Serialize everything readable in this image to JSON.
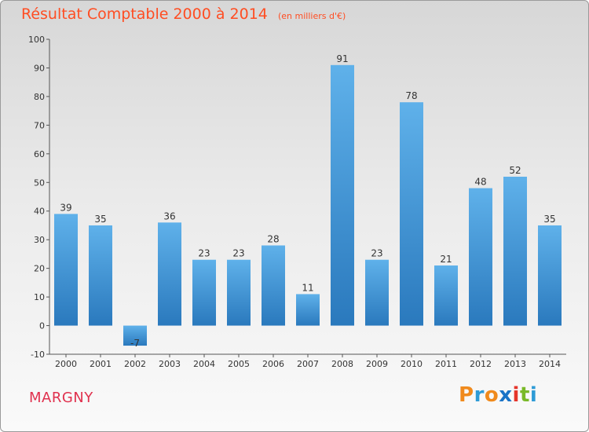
{
  "title": {
    "main": "Résultat Comptable 2000 à 2014",
    "sub": "(en milliers d'€)"
  },
  "commune": "MARGNY",
  "brand": {
    "letters": [
      "P",
      "r",
      "o",
      "x",
      "i",
      "t",
      "i"
    ],
    "colors": [
      "#f08a1c",
      "#2e9bd6",
      "#f08a1c",
      "#1a73c7",
      "#e5352b",
      "#79b928",
      "#2e9bd6"
    ]
  },
  "colors": {
    "bar_light": "#5fb1ea",
    "bar_dark": "#2a79bd",
    "title": "#ff4d22",
    "commune": "#e0314e"
  },
  "chart_data": {
    "type": "bar",
    "title": "Résultat Comptable 2000 à 2014",
    "subtitle": "(en milliers d'€)",
    "xlabel": "",
    "ylabel": "",
    "categories": [
      "2000",
      "2001",
      "2002",
      "2003",
      "2004",
      "2005",
      "2006",
      "2007",
      "2008",
      "2009",
      "2010",
      "2011",
      "2012",
      "2013",
      "2014"
    ],
    "values": [
      39,
      35,
      -7,
      36,
      23,
      23,
      28,
      11,
      91,
      23,
      78,
      21,
      48,
      52,
      35
    ],
    "ylim": [
      -10,
      100
    ],
    "yticks": [
      -10,
      0,
      10,
      20,
      30,
      40,
      50,
      60,
      70,
      80,
      90,
      100
    ],
    "grid": false,
    "legend": "none"
  }
}
